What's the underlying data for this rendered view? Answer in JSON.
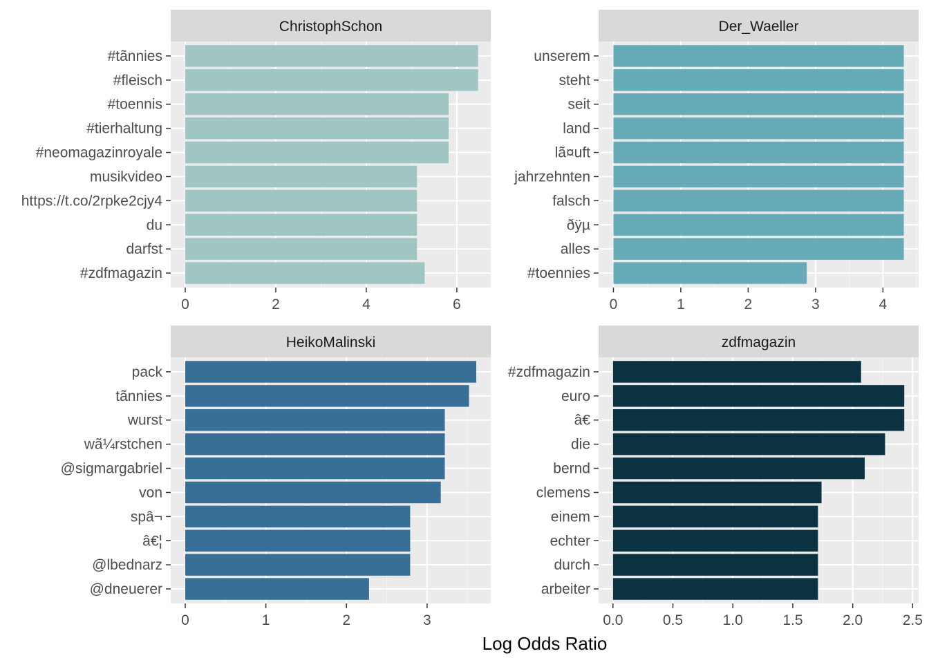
{
  "xlabel": "Log Odds Ratio",
  "colors": {
    "panel_bg": "#EBEBEB",
    "strip_bg": "#D9D9D9",
    "grid_major": "#FFFFFF",
    "text_dark": "#1A1A1A",
    "tick_text": "#4D4D4D"
  },
  "chart_data": [
    {
      "type": "bar",
      "orientation": "horizontal",
      "title": "ChristophSchon",
      "color": "#A0C6C3",
      "categories": [
        "#tãnnies",
        "#fleisch",
        "#toennis",
        "#tierhaltung",
        "#neomagazinroyale",
        "musikvideo",
        "https://t.co/2rpke2cjy4",
        "du",
        "darfst",
        "#zdfmagazin"
      ],
      "values": [
        6.47,
        6.47,
        5.82,
        5.82,
        5.82,
        5.12,
        5.12,
        5.12,
        5.12,
        5.29
      ],
      "xlim": [
        -0.32,
        6.75
      ],
      "xticks": [
        0,
        2,
        4,
        6
      ],
      "xtick_labels": [
        "0",
        "2",
        "4",
        "6"
      ]
    },
    {
      "type": "bar",
      "orientation": "horizontal",
      "title": "Der_Waeller",
      "color": "#67AAB8",
      "categories": [
        "unserem",
        "steht",
        "seit",
        "land",
        "lã¤uft",
        "jahrzehnten",
        "falsch",
        "ðÿµ",
        "alles",
        "#toennies"
      ],
      "values": [
        4.31,
        4.31,
        4.31,
        4.31,
        4.31,
        4.31,
        4.31,
        4.31,
        4.31,
        2.87
      ],
      "xlim": [
        -0.22,
        4.53
      ],
      "xticks": [
        0,
        1,
        2,
        3,
        4
      ],
      "xtick_labels": [
        "0",
        "1",
        "2",
        "3",
        "4"
      ]
    },
    {
      "type": "bar",
      "orientation": "horizontal",
      "title": "HeikoMalinski",
      "color": "#376F97",
      "categories": [
        "pack",
        "tãnnies",
        "wurst",
        "wã¼rstchen",
        "@sigmargabriel",
        "von",
        "spâ¬",
        "â€¦",
        "@lbednarz",
        "@dneuerer"
      ],
      "values": [
        3.61,
        3.52,
        3.22,
        3.22,
        3.22,
        3.17,
        2.79,
        2.79,
        2.79,
        2.28
      ],
      "xlim": [
        -0.18,
        3.79
      ],
      "xticks": [
        0,
        1,
        2,
        3
      ],
      "xtick_labels": [
        "0",
        "1",
        "2",
        "3"
      ]
    },
    {
      "type": "bar",
      "orientation": "horizontal",
      "title": "zdfmagazin",
      "color": "#0B3240",
      "categories": [
        "#zdfmagazin",
        "euro",
        "â€",
        "die",
        "bernd",
        "clemens",
        "einem",
        "echter",
        "durch",
        "arbeiter"
      ],
      "values": [
        2.07,
        2.43,
        2.43,
        2.27,
        2.1,
        1.74,
        1.71,
        1.71,
        1.71,
        1.71
      ],
      "xlim": [
        -0.12,
        2.55
      ],
      "xticks": [
        0.0,
        0.5,
        1.0,
        1.5,
        2.0,
        2.5
      ],
      "xtick_labels": [
        "0.0",
        "0.5",
        "1.0",
        "1.5",
        "2.0",
        "2.5"
      ]
    }
  ]
}
